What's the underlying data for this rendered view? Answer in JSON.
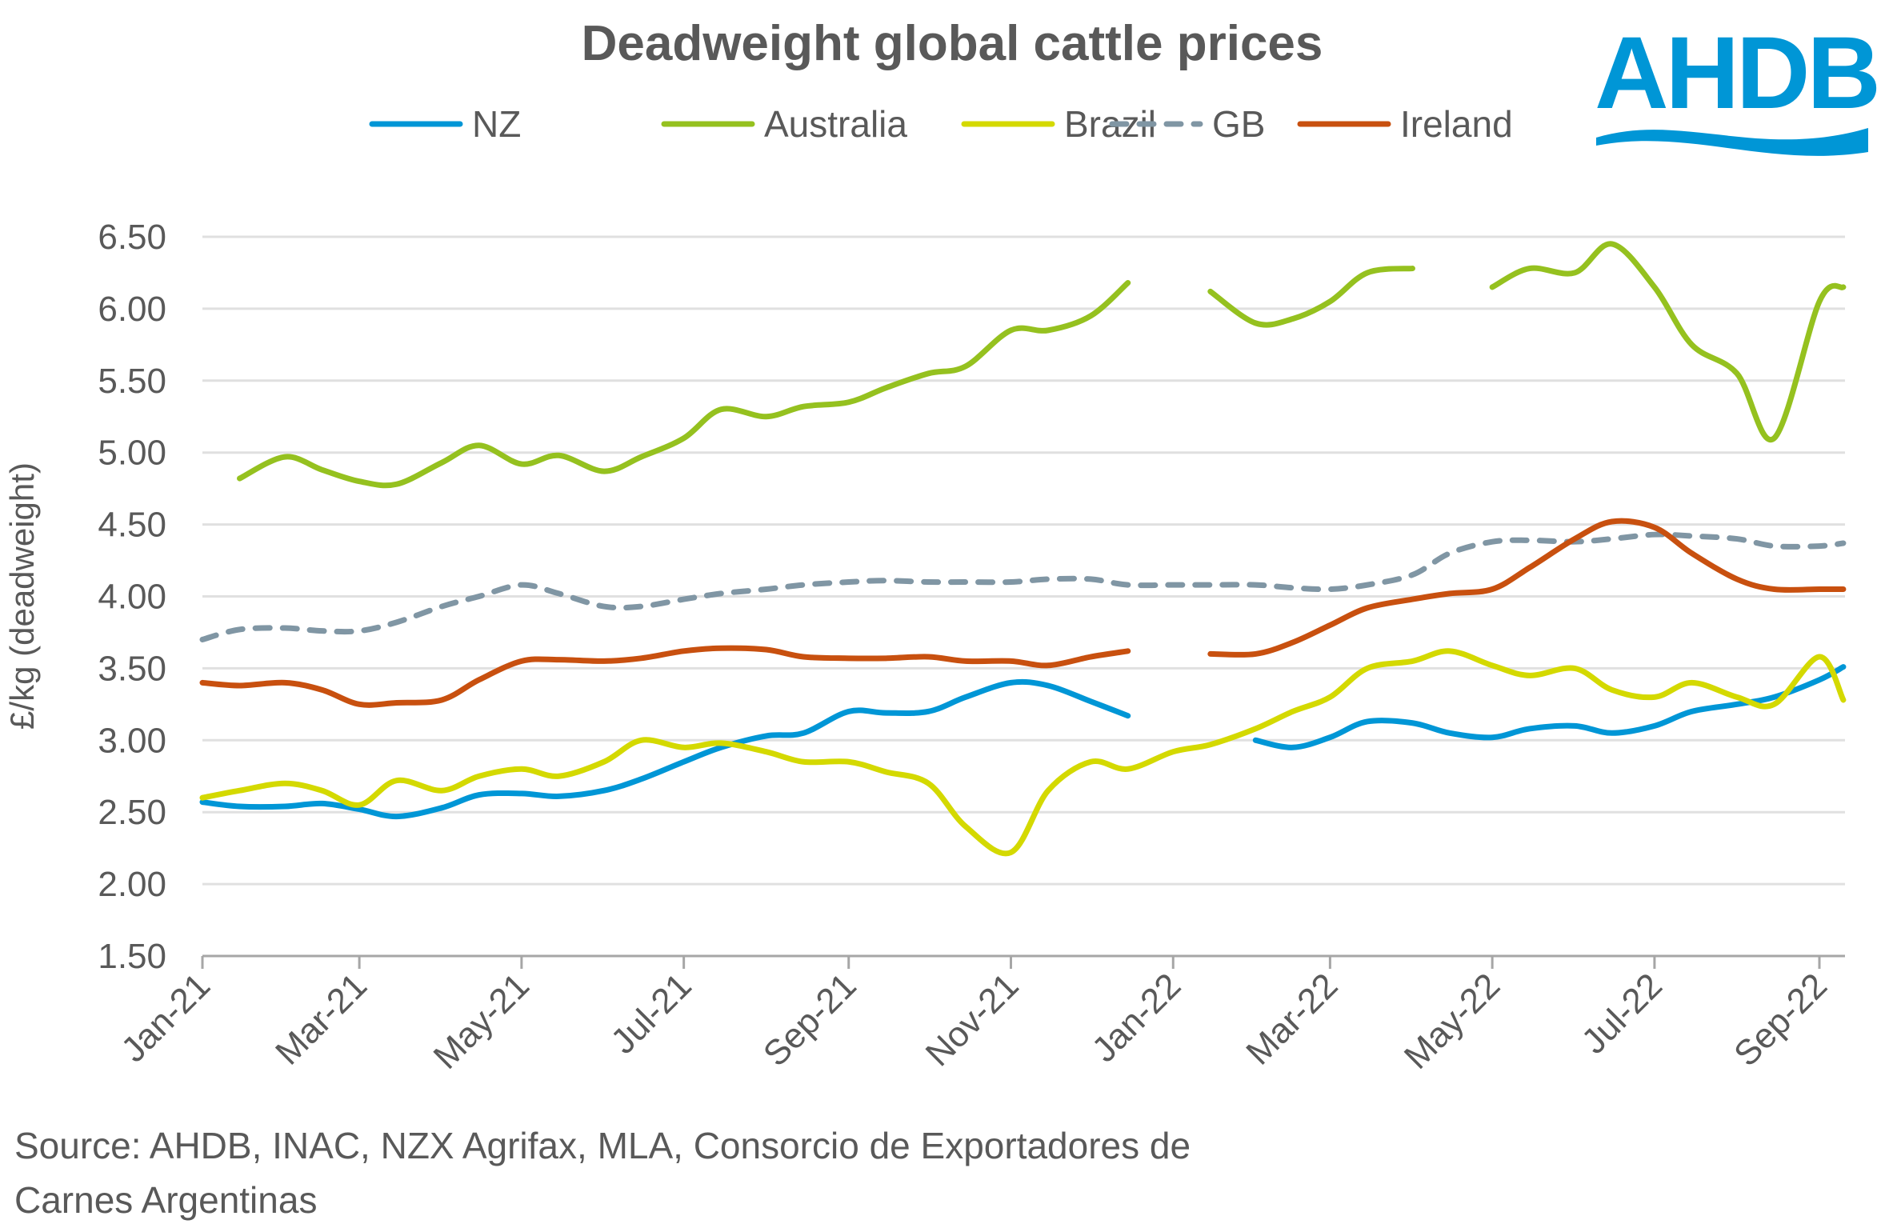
{
  "chart_data": {
    "type": "line",
    "title": "Deadweight global cattle prices",
    "ylabel": "£/kg (deadweight)",
    "xlabel": "",
    "ylim": [
      1.5,
      6.5
    ],
    "yticks": [
      "1.50",
      "2.00",
      "2.50",
      "3.00",
      "3.50",
      "4.00",
      "4.50",
      "5.00",
      "5.50",
      "6.00",
      "6.50"
    ],
    "xticks": [
      {
        "date": "2021-01-01",
        "label": "Jan-21"
      },
      {
        "date": "2021-03-01",
        "label": "Mar-21"
      },
      {
        "date": "2021-05-01",
        "label": "May-21"
      },
      {
        "date": "2021-07-01",
        "label": "Jul-21"
      },
      {
        "date": "2021-09-01",
        "label": "Sep-21"
      },
      {
        "date": "2021-11-01",
        "label": "Nov-21"
      },
      {
        "date": "2022-01-01",
        "label": "Jan-22"
      },
      {
        "date": "2022-03-01",
        "label": "Mar-22"
      },
      {
        "date": "2022-05-01",
        "label": "May-22"
      },
      {
        "date": "2022-07-01",
        "label": "Jul-22"
      },
      {
        "date": "2022-09-01",
        "label": "Sep-22"
      }
    ],
    "grid": true,
    "legend_position": "top",
    "x": [
      "2021-01-01",
      "2021-01-15",
      "2021-02-01",
      "2021-02-15",
      "2021-03-01",
      "2021-03-15",
      "2021-04-01",
      "2021-04-15",
      "2021-05-01",
      "2021-05-15",
      "2021-06-01",
      "2021-06-15",
      "2021-07-01",
      "2021-07-15",
      "2021-08-01",
      "2021-08-15",
      "2021-09-01",
      "2021-09-15",
      "2021-10-01",
      "2021-10-15",
      "2021-11-01",
      "2021-11-15",
      "2021-12-01",
      "2021-12-15",
      "2022-01-01",
      "2022-01-15",
      "2022-02-01",
      "2022-02-15",
      "2022-03-01",
      "2022-03-15",
      "2022-04-01",
      "2022-04-15",
      "2022-05-01",
      "2022-05-15",
      "2022-06-01",
      "2022-06-15",
      "2022-07-01",
      "2022-07-15",
      "2022-08-01",
      "2022-08-15",
      "2022-09-01",
      "2022-09-10"
    ],
    "series": [
      {
        "name": "NZ",
        "color": "#0096D6",
        "dash": false,
        "values": [
          2.57,
          2.54,
          2.54,
          2.56,
          2.52,
          2.47,
          2.53,
          2.62,
          2.63,
          2.61,
          2.65,
          2.73,
          2.85,
          2.95,
          3.03,
          3.05,
          3.2,
          3.19,
          3.2,
          3.3,
          3.4,
          3.38,
          3.27,
          3.17,
          null,
          null,
          3.0,
          2.95,
          3.02,
          3.13,
          3.12,
          3.05,
          3.02,
          3.08,
          3.1,
          3.05,
          3.1,
          3.2,
          3.25,
          3.3,
          3.42,
          3.51
        ]
      },
      {
        "name": "Australia",
        "color": "#95C11F",
        "dash": false,
        "values": [
          null,
          4.82,
          4.97,
          4.88,
          4.8,
          4.78,
          4.93,
          5.05,
          4.92,
          4.98,
          4.87,
          4.97,
          5.1,
          5.3,
          5.25,
          5.32,
          5.35,
          5.45,
          5.55,
          5.6,
          5.85,
          5.85,
          5.95,
          6.18,
          null,
          6.12,
          5.9,
          5.93,
          6.05,
          6.25,
          6.28,
          null,
          6.15,
          6.28,
          6.25,
          6.45,
          6.15,
          5.75,
          5.55,
          5.1,
          6.05,
          6.15
        ]
      },
      {
        "name": "Brazil",
        "color": "#D4D900",
        "dash": false,
        "values": [
          2.6,
          2.65,
          2.7,
          2.65,
          2.55,
          2.72,
          2.65,
          2.75,
          2.8,
          2.75,
          2.85,
          3.0,
          2.95,
          2.98,
          2.92,
          2.85,
          2.85,
          2.78,
          2.7,
          2.4,
          2.22,
          2.65,
          2.85,
          2.8,
          2.92,
          2.97,
          3.08,
          3.2,
          3.3,
          3.5,
          3.55,
          3.62,
          3.52,
          3.45,
          3.5,
          3.35,
          3.3,
          3.4,
          3.3,
          3.25,
          3.58,
          3.28
        ]
      },
      {
        "name": "GB",
        "color": "#8096A4",
        "dash": true,
        "values": [
          3.7,
          3.77,
          3.78,
          3.76,
          3.76,
          3.82,
          3.93,
          4.0,
          4.08,
          4.02,
          3.93,
          3.93,
          3.98,
          4.02,
          4.05,
          4.08,
          4.1,
          4.11,
          4.1,
          4.1,
          4.1,
          4.12,
          4.12,
          4.08,
          4.08,
          4.08,
          4.08,
          4.06,
          4.05,
          4.08,
          4.15,
          4.3,
          4.38,
          4.39,
          4.38,
          4.4,
          4.43,
          4.42,
          4.4,
          4.35,
          4.35,
          4.37
        ]
      },
      {
        "name": "Ireland",
        "color": "#C8500F",
        "dash": false,
        "values": [
          3.4,
          3.38,
          3.4,
          3.35,
          3.25,
          3.26,
          3.28,
          3.42,
          3.55,
          3.56,
          3.55,
          3.57,
          3.62,
          3.64,
          3.63,
          3.58,
          3.57,
          3.57,
          3.58,
          3.55,
          3.55,
          3.52,
          3.58,
          3.62,
          null,
          3.6,
          3.6,
          3.68,
          3.8,
          3.92,
          3.98,
          4.02,
          4.05,
          4.2,
          4.4,
          4.52,
          4.48,
          4.3,
          4.12,
          4.05,
          4.05,
          4.05
        ]
      }
    ]
  },
  "source_line1": "Source: AHDB, INAC, NZX Agrifax, MLA, Consorcio de Exportadores de",
  "source_line2": "Carnes Argentinas",
  "logo": {
    "text": "AHDB",
    "color": "#0096D6"
  }
}
